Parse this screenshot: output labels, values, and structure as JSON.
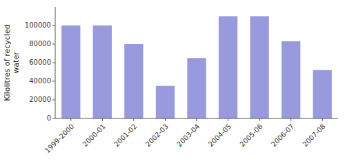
{
  "chart_data": {
    "type": "bar",
    "categories": [
      "1999-2000",
      "2000-01",
      "2001-02",
      "2002-03",
      "2003-04",
      "2004-05",
      "2005-06",
      "2006-07",
      "2007-08"
    ],
    "values": [
      100000,
      100000,
      80000,
      35000,
      65000,
      110000,
      110000,
      83000,
      52000
    ],
    "color": "#9999dd",
    "ylabel": "Kilolitres of recycled\nwater",
    "ylim": [
      0,
      120000
    ],
    "yticks": [
      0,
      20000,
      40000,
      60000,
      80000,
      100000
    ]
  }
}
